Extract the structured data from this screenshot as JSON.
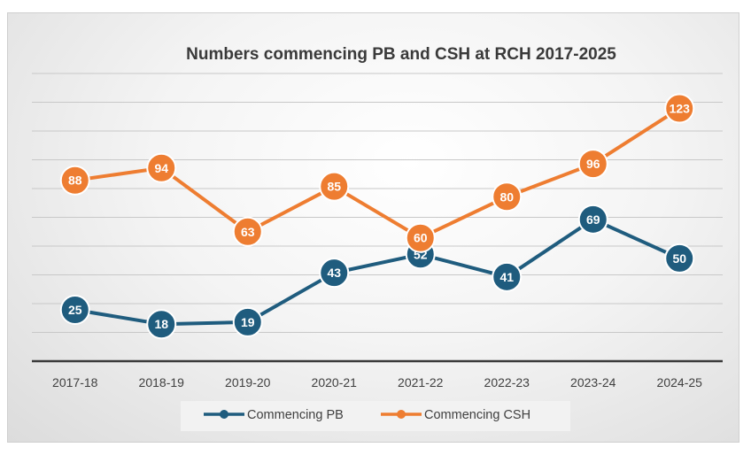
{
  "chart_data": {
    "type": "line",
    "title": "Numbers commencing PB and CSH at RCH 2017-2025",
    "categories": [
      "2017-18",
      "2018-19",
      "2019-20",
      "2020-21",
      "2021-22",
      "2022-23",
      "2023-24",
      "2024-25"
    ],
    "series": [
      {
        "name": "Commencing PB",
        "values": [
          25,
          18,
          19,
          43,
          52,
          41,
          69,
          50
        ],
        "color": "#1f5c7e"
      },
      {
        "name": "Commencing CSH",
        "values": [
          88,
          94,
          63,
          85,
          60,
          80,
          96,
          123
        ],
        "color": "#ee7d31"
      }
    ],
    "ylim": [
      0,
      140
    ],
    "ytick_step": 14,
    "grid": true,
    "legend": "bottom",
    "xlabel": "",
    "ylabel": ""
  }
}
